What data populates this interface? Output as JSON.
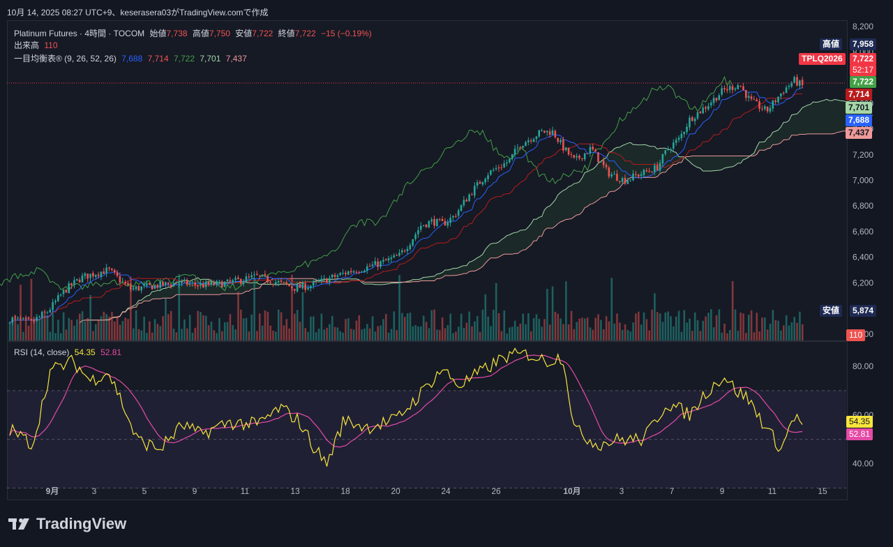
{
  "header": {
    "caption": "10月 14, 2025 08:27 UTC+9、keserasera03がTradingView.comで作成"
  },
  "legend": {
    "symbol": "Platinum Futures · 4時間 · TOCOM",
    "open_label": "始値",
    "open": "7,738",
    "high_label": "高値",
    "high": "7,750",
    "low_label": "安値",
    "low": "7,722",
    "close_label": "終値",
    "close": "7,722",
    "change": "−15 (−0.19%)",
    "volume_label": "出来高",
    "volume": "110",
    "ichimoku_label": "一目均衡表® (9, 26, 52, 26)",
    "ichimoku_values": [
      "7,688",
      "7,714",
      "7,722",
      "7,701",
      "7,437"
    ],
    "rsi_label": "RSI (14, close)",
    "rsi_value": "54.35",
    "rsi_ma": "52.81"
  },
  "price_labels": {
    "high_tag": "高値",
    "high_value": "7,958",
    "low_tag": "安値",
    "low_value": "5,874",
    "ticker": "TPLQ2026",
    "last": "7,722",
    "countdown": "52:17",
    "close_tag": "7,722",
    "base": "7,714",
    "span_a": "7,701",
    "conv": "7,688",
    "span_b": "7,437",
    "volume": "110",
    "rsi": "54.35",
    "rsi_ma": "52.81"
  },
  "colors": {
    "up": "#26a69a",
    "down": "#ef5350",
    "conversion": "#2962ff",
    "base": "#b71c1c",
    "lagging": "#43a047",
    "span_a": "#a5d6a7",
    "span_b": "#ef9a9a",
    "rsi": "#f7e53c",
    "rsi_ma": "#e54ba6"
  },
  "brand": {
    "name": "TradingView"
  },
  "chart_data": {
    "type": "candlestick",
    "price_axis": [
      "8,200",
      "8,000",
      "7,800",
      "7,600",
      "7,400",
      "7,200",
      "7,000",
      "6,800",
      "6,600",
      "6,400",
      "6,200",
      "6,000",
      "5,800"
    ],
    "price_range": [
      5750,
      8250
    ],
    "time_axis": [
      "9月",
      "3",
      "5",
      "9",
      "11",
      "13",
      "18",
      "20",
      "24",
      "26",
      "10月",
      "3",
      "7",
      "9",
      "11",
      "15"
    ],
    "rsi_axis": [
      "80.00",
      "60.00",
      "40.00"
    ],
    "rsi_range": [
      25,
      90
    ],
    "rsi_band": [
      30,
      70
    ],
    "close_path_anchors": [
      [
        0,
        5920
      ],
      [
        8,
        5890
      ],
      [
        14,
        5980
      ],
      [
        20,
        6140
      ],
      [
        26,
        6240
      ],
      [
        32,
        6280
      ],
      [
        36,
        6300
      ],
      [
        44,
        6150
      ],
      [
        54,
        6180
      ],
      [
        62,
        6200
      ],
      [
        70,
        6180
      ],
      [
        80,
        6200
      ],
      [
        90,
        6250
      ],
      [
        98,
        6200
      ],
      [
        104,
        6160
      ],
      [
        110,
        6180
      ],
      [
        116,
        6230
      ],
      [
        124,
        6290
      ],
      [
        130,
        6320
      ],
      [
        136,
        6360
      ],
      [
        142,
        6410
      ],
      [
        146,
        6520
      ],
      [
        150,
        6650
      ],
      [
        154,
        6680
      ],
      [
        158,
        6660
      ],
      [
        162,
        6720
      ],
      [
        168,
        6900
      ],
      [
        174,
        7050
      ],
      [
        182,
        7150
      ],
      [
        186,
        7280
      ],
      [
        190,
        7330
      ],
      [
        194,
        7380
      ],
      [
        198,
        7380
      ],
      [
        202,
        7250
      ],
      [
        206,
        7150
      ],
      [
        212,
        7250
      ],
      [
        218,
        7060
      ],
      [
        224,
        7000
      ],
      [
        230,
        7050
      ],
      [
        236,
        7100
      ],
      [
        240,
        7250
      ],
      [
        244,
        7320
      ],
      [
        248,
        7480
      ],
      [
        254,
        7580
      ],
      [
        260,
        7700
      ],
      [
        266,
        7750
      ],
      [
        270,
        7620
      ],
      [
        276,
        7540
      ],
      [
        282,
        7700
      ],
      [
        286,
        7780
      ],
      [
        290,
        7722
      ]
    ],
    "rsi_path_anchors": [
      [
        0,
        54
      ],
      [
        8,
        48
      ],
      [
        14,
        78
      ],
      [
        22,
        82
      ],
      [
        28,
        74
      ],
      [
        34,
        78
      ],
      [
        38,
        68
      ],
      [
        44,
        50
      ],
      [
        52,
        46
      ],
      [
        60,
        56
      ],
      [
        66,
        52
      ],
      [
        76,
        57
      ],
      [
        86,
        56
      ],
      [
        94,
        63
      ],
      [
        100,
        58
      ],
      [
        106,
        46
      ],
      [
        110,
        40
      ],
      [
        116,
        58
      ],
      [
        124,
        55
      ],
      [
        134,
        58
      ],
      [
        142,
        68
      ],
      [
        150,
        79
      ],
      [
        156,
        72
      ],
      [
        164,
        78
      ],
      [
        172,
        84
      ],
      [
        180,
        85
      ],
      [
        186,
        82
      ],
      [
        192,
        84
      ],
      [
        196,
        54
      ],
      [
        204,
        48
      ],
      [
        212,
        50
      ],
      [
        220,
        50
      ],
      [
        228,
        65
      ],
      [
        236,
        60
      ],
      [
        242,
        70
      ],
      [
        248,
        76
      ],
      [
        252,
        70
      ],
      [
        256,
        67
      ],
      [
        264,
        52
      ],
      [
        268,
        46
      ],
      [
        272,
        60
      ],
      [
        276,
        54.35
      ]
    ]
  }
}
